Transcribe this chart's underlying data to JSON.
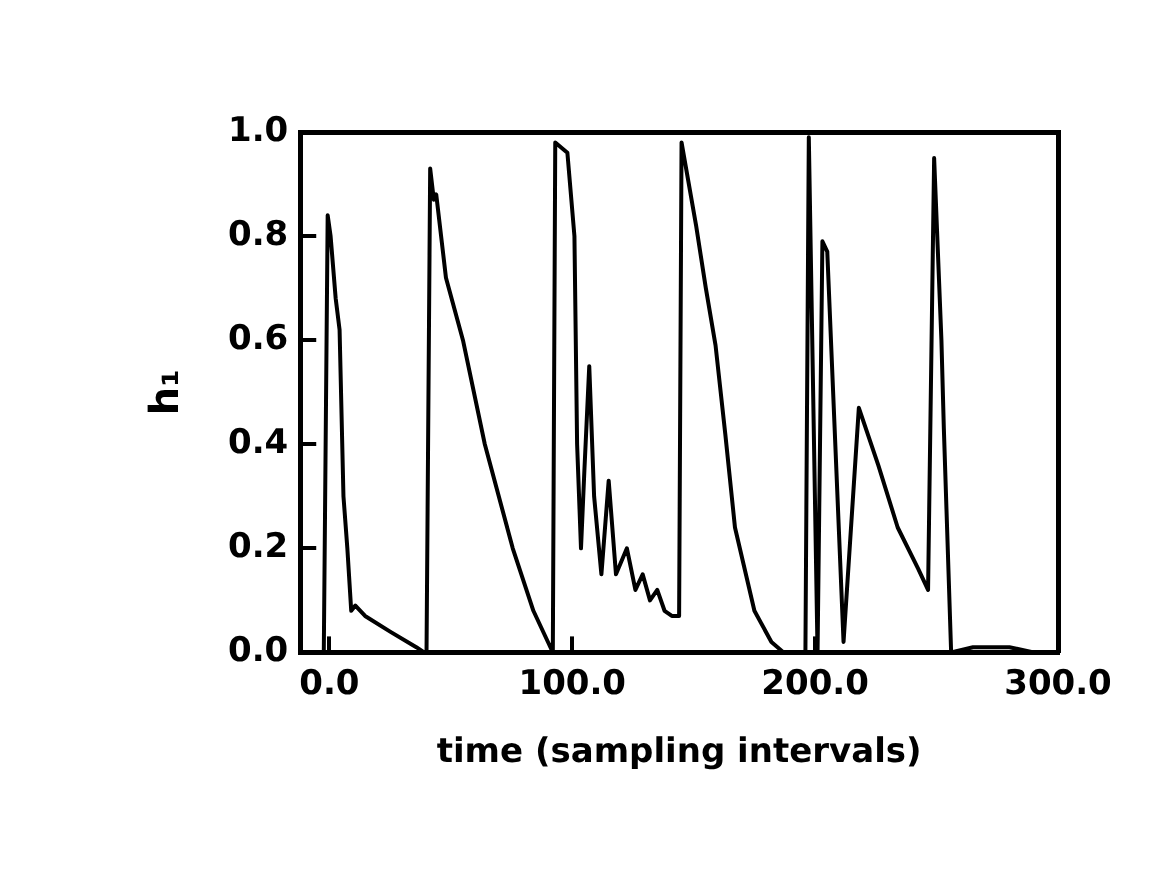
{
  "chart_data": {
    "type": "line",
    "xlabel": "time (sampling intervals)",
    "ylabel": "h₁",
    "xlim": [
      -12,
      300
    ],
    "ylim": [
      0,
      1
    ],
    "xticks": [
      {
        "value": 0,
        "label": "0.0"
      },
      {
        "value": 100,
        "label": "100.0"
      },
      {
        "value": 200,
        "label": "200.0"
      },
      {
        "value": 300,
        "label": "300.0"
      }
    ],
    "yticks": [
      {
        "value": 0,
        "label": "0.0"
      },
      {
        "value": 0.2,
        "label": "0.2"
      },
      {
        "value": 0.4,
        "label": "0.4"
      },
      {
        "value": 0.6,
        "label": "0.6"
      },
      {
        "value": 0.8,
        "label": "0.8"
      },
      {
        "value": 1,
        "label": "1.0"
      }
    ],
    "grid": false,
    "legend": false,
    "marker": "none",
    "line_style": "solid",
    "series": [
      {
        "color": "#000000",
        "x": [
          -12,
          -2.3,
          -0.7,
          0.5,
          2.6,
          4.2,
          5.8,
          7.4,
          9,
          10.7,
          14.7,
          25,
          35.8,
          39,
          40,
          41.5,
          43,
          44,
          48,
          55,
          64,
          75.5,
          84,
          90,
          92,
          93,
          98,
          100.9,
          102,
          103.6,
          105,
          107,
          109,
          112,
          115,
          118,
          122.5,
          126,
          129,
          132,
          135,
          138,
          141,
          144,
          145,
          151,
          155,
          159,
          163,
          167,
          175,
          182,
          187,
          196,
          197.4,
          201,
          203,
          205,
          211.7,
          218,
          226,
          234,
          242.5,
          246.5,
          249,
          252,
          253,
          256,
          265,
          280,
          290,
          297
        ],
        "values": [
          0,
          0,
          0.84,
          0.8,
          0.68,
          0.62,
          0.3,
          0.2,
          0.08,
          0.09,
          0.07,
          0.04,
          0.01,
          0,
          0,
          0.93,
          0.87,
          0.88,
          0.72,
          0.6,
          0.4,
          0.2,
          0.08,
          0.02,
          0,
          0.98,
          0.96,
          0.8,
          0.4,
          0.2,
          0.35,
          0.55,
          0.3,
          0.15,
          0.33,
          0.15,
          0.2,
          0.12,
          0.15,
          0.1,
          0.12,
          0.08,
          0.07,
          0.07,
          0.98,
          0.82,
          0.7,
          0.59,
          0.42,
          0.24,
          0.08,
          0.02,
          0,
          0,
          0.99,
          0,
          0.79,
          0.77,
          0.02,
          0.47,
          0.36,
          0.24,
          0.16,
          0.12,
          0.95,
          0.6,
          0.43,
          0,
          0.01,
          0.01,
          0,
          0
        ]
      }
    ]
  }
}
